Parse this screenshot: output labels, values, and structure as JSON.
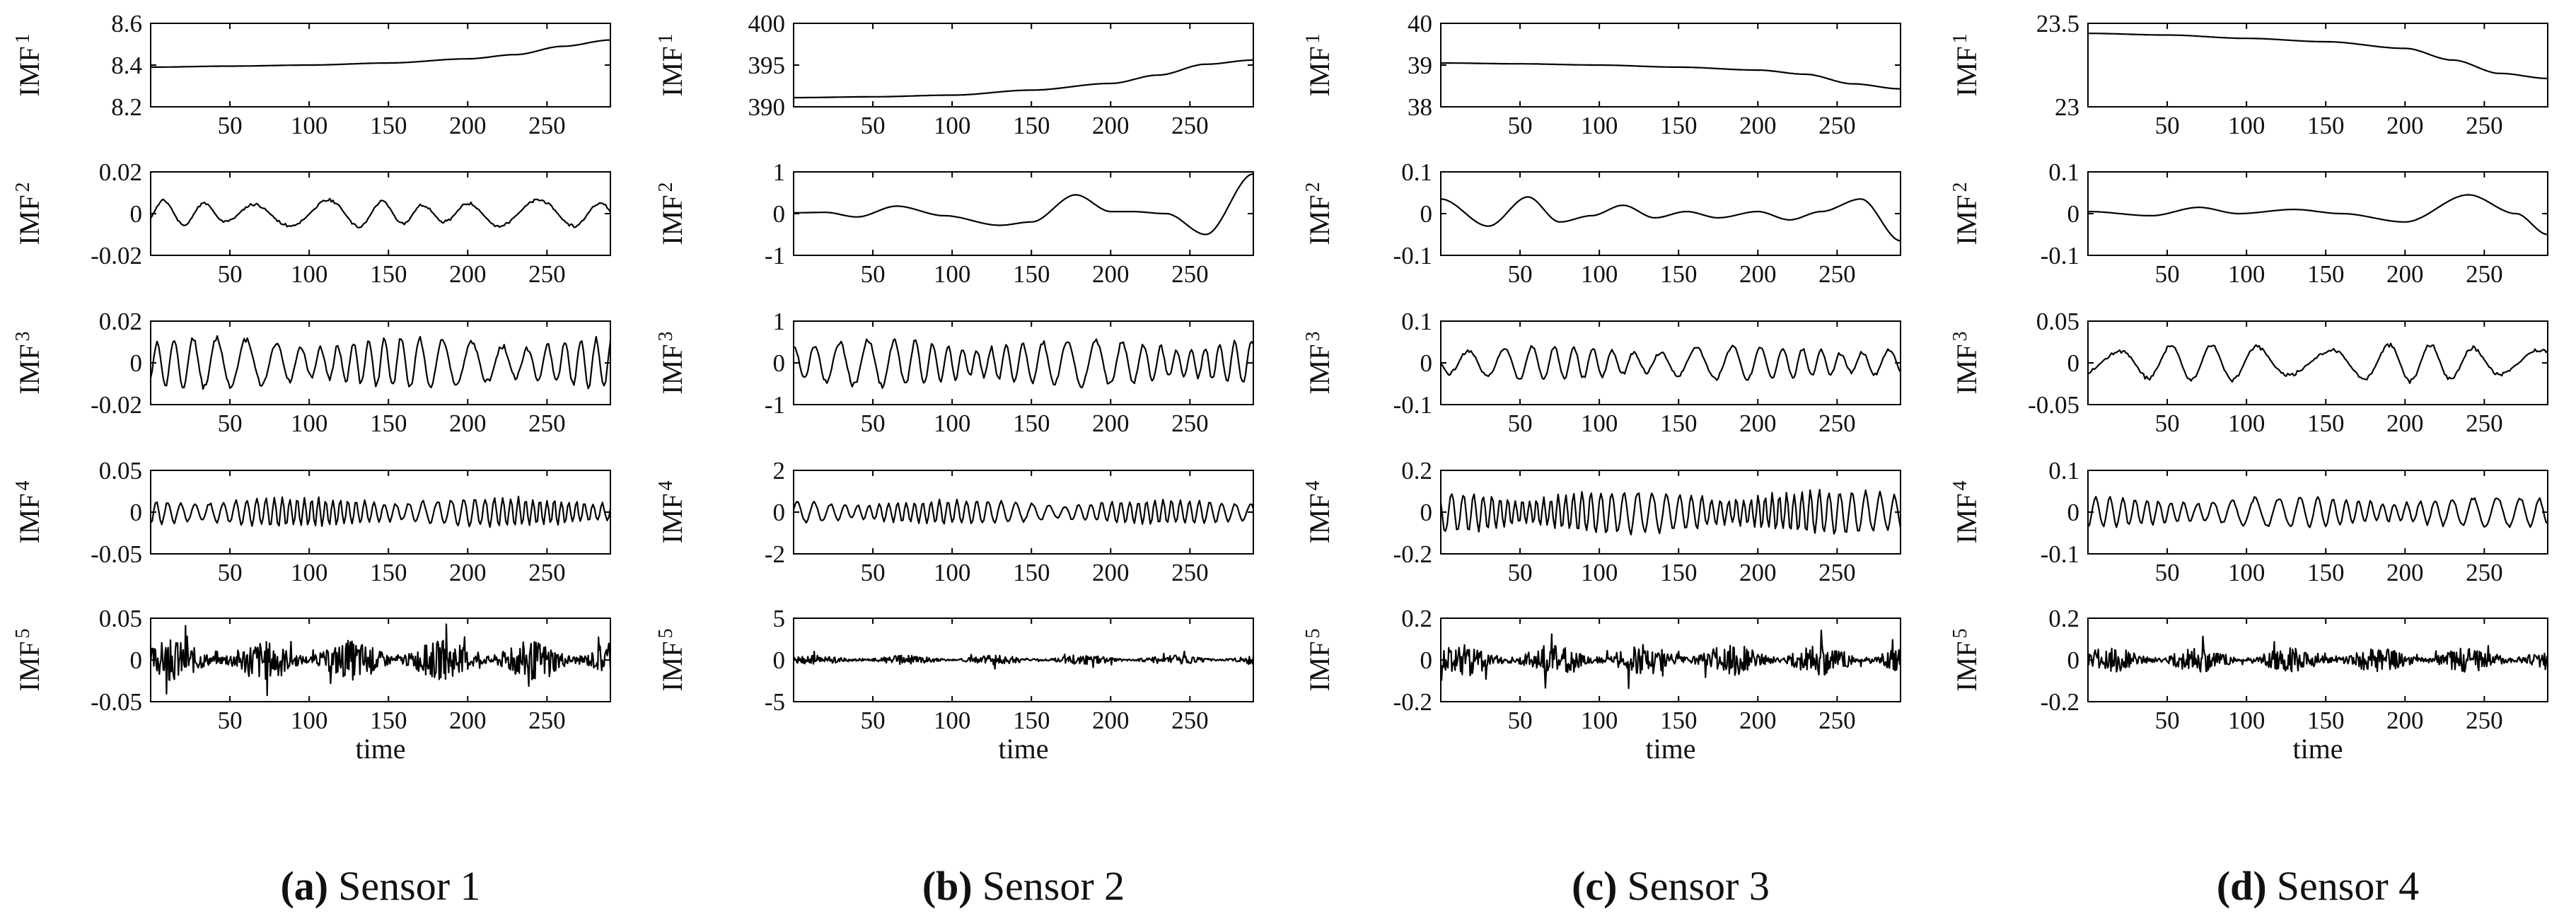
{
  "figure": {
    "xlabel": "time",
    "ylabel_prefix": "IMF",
    "x_ticks": [
      50,
      100,
      150,
      200,
      250
    ],
    "x_range": [
      0,
      290
    ],
    "num_points": 290
  },
  "columns": [
    {
      "caption_label": "(a)",
      "caption_text": "Sensor 1"
    },
    {
      "caption_label": "(b)",
      "caption_text": "Sensor 2"
    },
    {
      "caption_label": "(c)",
      "caption_text": "Sensor 3"
    },
    {
      "caption_label": "(d)",
      "caption_text": "Sensor 4"
    }
  ],
  "chart_data": [
    {
      "type": "line",
      "sensor": "Sensor 1",
      "panels": [
        {
          "ylabel": "IMF",
          "sub": "1",
          "ylim": [
            8.2,
            8.6
          ],
          "yticks": [
            8.2,
            8.4,
            8.6
          ],
          "ytick_labels": [
            "8.2",
            "8.4",
            "8.6"
          ],
          "kind": "trend",
          "trend_x": [
            0,
            50,
            100,
            150,
            200,
            230,
            260,
            290
          ],
          "trend_y": [
            8.39,
            8.395,
            8.4,
            8.41,
            8.43,
            8.45,
            8.49,
            8.52
          ]
        },
        {
          "ylabel": "IMF",
          "sub": "2",
          "ylim": [
            -0.02,
            0.02
          ],
          "yticks": [
            -0.02,
            0,
            0.02
          ],
          "ytick_labels": [
            "-0.02",
            "0",
            "0.02"
          ],
          "kind": "osc",
          "amp": 0.0065,
          "period": 34,
          "seed": 11
        },
        {
          "ylabel": "IMF",
          "sub": "3",
          "ylim": [
            -0.02,
            0.02
          ],
          "yticks": [
            -0.02,
            0,
            0.02
          ],
          "ytick_labels": [
            "-0.02",
            "0",
            "0.02"
          ],
          "kind": "osc",
          "amp": 0.012,
          "period": 13,
          "seed": 12
        },
        {
          "ylabel": "IMF",
          "sub": "4",
          "ylim": [
            -0.05,
            0.05
          ],
          "yticks": [
            -0.05,
            0,
            0.05
          ],
          "ytick_labels": [
            "-0.05",
            "0",
            "0.05"
          ],
          "kind": "osc",
          "amp": 0.017,
          "period": 6,
          "seed": 13
        },
        {
          "ylabel": "IMF",
          "sub": "5",
          "ylim": [
            -0.05,
            0.05
          ],
          "yticks": [
            -0.05,
            0,
            0.05
          ],
          "ytick_labels": [
            "-0.05",
            "0",
            "0.05"
          ],
          "kind": "noise",
          "amp": 0.024,
          "period": 2.6,
          "seed": 14
        }
      ]
    },
    {
      "type": "line",
      "sensor": "Sensor 2",
      "panels": [
        {
          "ylabel": "IMF",
          "sub": "1",
          "ylim": [
            390,
            400
          ],
          "yticks": [
            390,
            395,
            400
          ],
          "ytick_labels": [
            "390",
            "395",
            "400"
          ],
          "kind": "trend",
          "trend_x": [
            0,
            50,
            100,
            150,
            200,
            230,
            260,
            290
          ],
          "trend_y": [
            391.1,
            391.2,
            391.4,
            392.0,
            392.8,
            393.8,
            395.1,
            395.6
          ]
        },
        {
          "ylabel": "IMF",
          "sub": "2",
          "ylim": [
            -1,
            1
          ],
          "yticks": [
            -1,
            0,
            1
          ],
          "ytick_labels": [
            "-1",
            "0",
            "1"
          ],
          "kind": "keyed",
          "key_x": [
            0,
            20,
            40,
            65,
            95,
            130,
            150,
            178,
            200,
            213,
            235,
            260,
            290
          ],
          "key_y": [
            0.02,
            0.03,
            -0.08,
            0.18,
            -0.05,
            -0.28,
            -0.2,
            0.45,
            0.05,
            0.05,
            0.0,
            -0.5,
            0.95
          ]
        },
        {
          "ylabel": "IMF",
          "sub": "3",
          "ylim": [
            -1,
            1
          ],
          "yticks": [
            -1,
            0,
            1
          ],
          "ytick_labels": [
            "-1",
            "0",
            "1"
          ],
          "kind": "osc",
          "amp": 0.55,
          "period": 12,
          "seed": 22
        },
        {
          "ylabel": "IMF",
          "sub": "4",
          "ylim": [
            -2,
            2
          ],
          "yticks": [
            -2,
            0,
            2
          ],
          "ytick_labels": [
            "-2",
            "0",
            "2"
          ],
          "kind": "osc",
          "amp": 0.55,
          "period": 7,
          "seed": 23
        },
        {
          "ylabel": "IMF",
          "sub": "5",
          "ylim": [
            -5,
            5
          ],
          "yticks": [
            -5,
            0,
            5
          ],
          "ytick_labels": [
            "-5",
            "0",
            "5"
          ],
          "kind": "noise",
          "amp": 0.55,
          "period": 2.6,
          "seed": 24
        }
      ]
    },
    {
      "type": "line",
      "sensor": "Sensor 3",
      "panels": [
        {
          "ylabel": "IMF",
          "sub": "1",
          "ylim": [
            38,
            40
          ],
          "yticks": [
            38,
            39,
            40
          ],
          "ytick_labels": [
            "38",
            "39",
            "40"
          ],
          "kind": "trend",
          "trend_x": [
            0,
            50,
            100,
            150,
            200,
            230,
            260,
            290
          ],
          "trend_y": [
            39.05,
            39.03,
            39.0,
            38.95,
            38.88,
            38.78,
            38.55,
            38.43
          ]
        },
        {
          "ylabel": "IMF",
          "sub": "2",
          "ylim": [
            -0.1,
            0.1
          ],
          "yticks": [
            -0.1,
            0,
            0.1
          ],
          "ytick_labels": [
            "-0.1",
            "0",
            "0.1"
          ],
          "kind": "keyed",
          "key_x": [
            0,
            30,
            55,
            75,
            95,
            115,
            135,
            155,
            175,
            200,
            220,
            240,
            265,
            290
          ],
          "key_y": [
            0.035,
            -0.03,
            0.04,
            -0.02,
            -0.005,
            0.02,
            -0.01,
            0.005,
            -0.01,
            0.005,
            -0.015,
            0.005,
            0.035,
            -0.065
          ]
        },
        {
          "ylabel": "IMF",
          "sub": "3",
          "ylim": [
            -0.1,
            0.1
          ],
          "yticks": [
            -0.1,
            0,
            0.1
          ],
          "ytick_labels": [
            "-0.1",
            "0",
            "0.1"
          ],
          "kind": "osc",
          "amp": 0.04,
          "period": 16,
          "seed": 32
        },
        {
          "ylabel": "IMF",
          "sub": "4",
          "ylim": [
            -0.2,
            0.2
          ],
          "yticks": [
            -0.2,
            0,
            0.2
          ],
          "ytick_labels": [
            "-0.2",
            "0",
            "0.2"
          ],
          "kind": "osc",
          "amp": 0.1,
          "period": 6,
          "seed": 33
        },
        {
          "ylabel": "IMF",
          "sub": "5",
          "ylim": [
            -0.2,
            0.2
          ],
          "yticks": [
            -0.2,
            0,
            0.2
          ],
          "ytick_labels": [
            "-0.2",
            "0",
            "0.2"
          ],
          "kind": "noise",
          "amp": 0.075,
          "period": 2.6,
          "seed": 34
        }
      ]
    },
    {
      "type": "line",
      "sensor": "Sensor 4",
      "panels": [
        {
          "ylabel": "IMF",
          "sub": "1",
          "ylim": [
            23,
            23.5
          ],
          "yticks": [
            23,
            23.5
          ],
          "ytick_labels": [
            "23",
            "23.5"
          ],
          "kind": "trend",
          "trend_x": [
            0,
            50,
            100,
            150,
            200,
            230,
            260,
            290
          ],
          "trend_y": [
            23.44,
            23.43,
            23.41,
            23.39,
            23.35,
            23.28,
            23.2,
            23.17
          ]
        },
        {
          "ylabel": "IMF",
          "sub": "2",
          "ylim": [
            -0.1,
            0.1
          ],
          "yticks": [
            -0.1,
            0,
            0.1
          ],
          "ytick_labels": [
            "-0.1",
            "0",
            "0.1"
          ],
          "kind": "keyed",
          "key_x": [
            0,
            40,
            70,
            95,
            130,
            160,
            200,
            240,
            270,
            290
          ],
          "key_y": [
            0.005,
            -0.005,
            0.015,
            0.0,
            0.01,
            0.0,
            -0.02,
            0.045,
            0.0,
            -0.05
          ]
        },
        {
          "ylabel": "IMF",
          "sub": "3",
          "ylim": [
            -0.05,
            0.05
          ],
          "yticks": [
            -0.05,
            0,
            0.05
          ],
          "ytick_labels": [
            "-0.05",
            "0",
            "0.05"
          ],
          "kind": "osc",
          "amp": 0.022,
          "period": 34,
          "seed": 42
        },
        {
          "ylabel": "IMF",
          "sub": "4",
          "ylim": [
            -0.1,
            0.1
          ],
          "yticks": [
            -0.1,
            0,
            0.1
          ],
          "ytick_labels": [
            "-0.1",
            "0",
            "0.1"
          ],
          "kind": "osc",
          "amp": 0.035,
          "period": 10,
          "seed": 43
        },
        {
          "ylabel": "IMF",
          "sub": "5",
          "ylim": [
            -0.2,
            0.2
          ],
          "yticks": [
            -0.2,
            0,
            0.2
          ],
          "ytick_labels": [
            "-0.2",
            "0",
            "0.2"
          ],
          "kind": "noise",
          "amp": 0.06,
          "period": 2.6,
          "seed": 44
        }
      ]
    }
  ]
}
